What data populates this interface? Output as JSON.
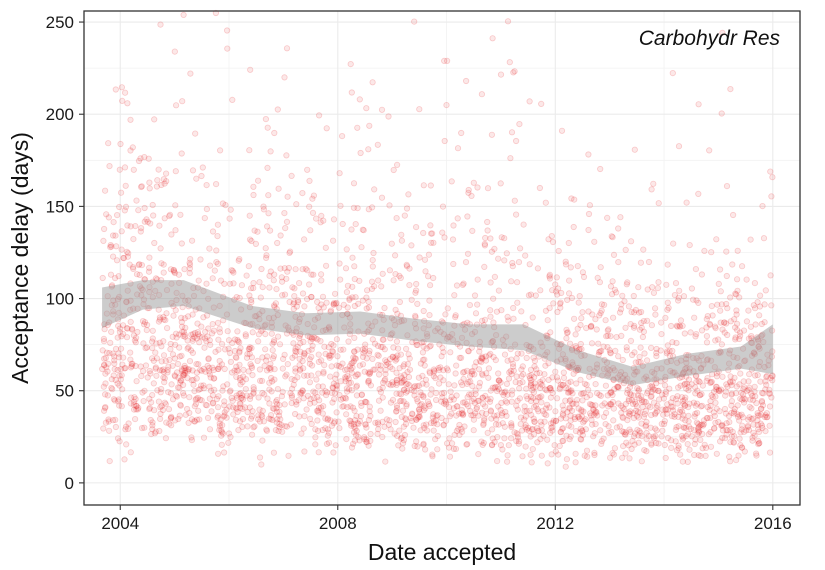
{
  "chart_data": {
    "type": "scatter",
    "title": "",
    "xlabel": "Date accepted",
    "ylabel": "Acceptance delay (days)",
    "annotation": "Carbohydr Res",
    "xlim": [
      "2003-05-01",
      "2016-07-01"
    ],
    "ylim": [
      -12,
      256
    ],
    "x_ticks": [
      "2004",
      "2008",
      "2012",
      "2016"
    ],
    "y_ticks": [
      0,
      50,
      100,
      150,
      200,
      250
    ],
    "grid": true,
    "point_color": "#e41a1c",
    "band_color": "#999999",
    "series": [
      {
        "kind": "points",
        "approx_count": 3200,
        "x_range": [
          "2003-09-01",
          "2016-01-01"
        ],
        "median_delay_by_year": [
          {
            "x": "2004-01-01",
            "y": 80
          },
          {
            "x": "2006-01-01",
            "y": 65
          },
          {
            "x": "2008-01-01",
            "y": 62
          },
          {
            "x": "2010-01-01",
            "y": 58
          },
          {
            "x": "2012-01-01",
            "y": 55
          },
          {
            "x": "2014-01-01",
            "y": 48
          },
          {
            "x": "2016-01-01",
            "y": 52
          }
        ]
      },
      {
        "kind": "smooth",
        "x": [
          "2003-09-01",
          "2004-06-01",
          "2005-03-01",
          "2006-06-01",
          "2007-06-01",
          "2008-06-01",
          "2009-06-01",
          "2010-06-01",
          "2011-06-01",
          "2012-06-01",
          "2013-06-01",
          "2014-06-01",
          "2015-06-01",
          "2016-01-01"
        ],
        "y": [
          95,
          102,
          103,
          90,
          86,
          87,
          83,
          80,
          79,
          66,
          58,
          64,
          68,
          72
        ],
        "lower": [
          84,
          94,
          96,
          84,
          80,
          81,
          77,
          74,
          72,
          60,
          53,
          58,
          62,
          59
        ],
        "upper": [
          106,
          110,
          110,
          96,
          92,
          93,
          89,
          86,
          86,
          72,
          63,
          70,
          74,
          86
        ]
      }
    ]
  }
}
